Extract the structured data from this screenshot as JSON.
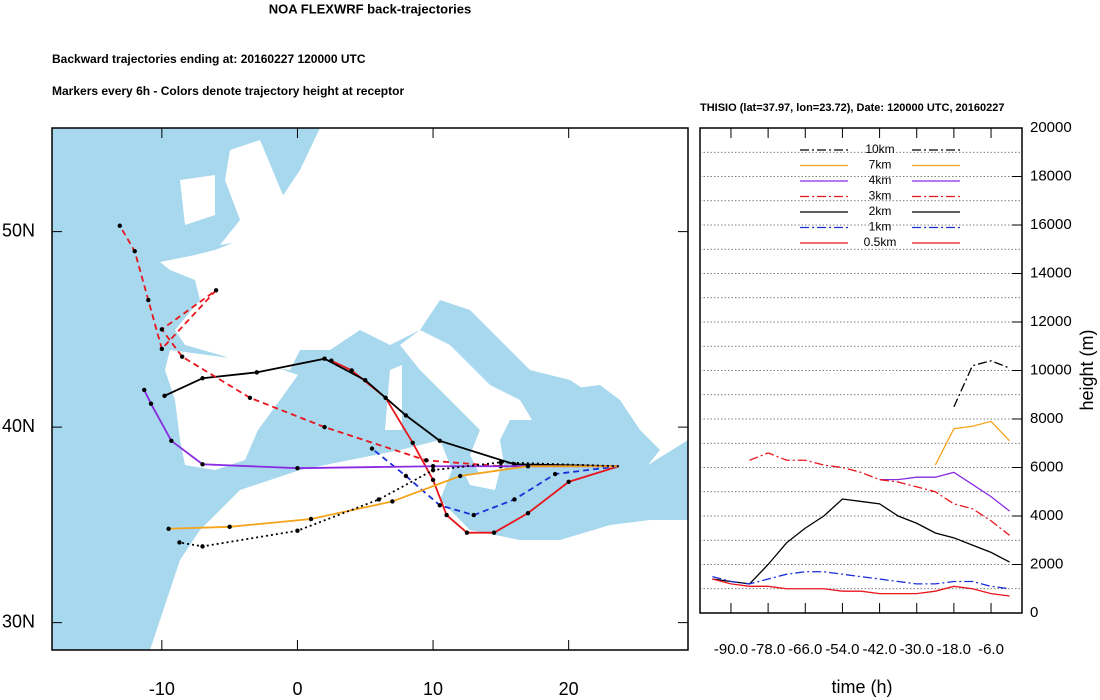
{
  "chart_data": [
    {
      "type": "map",
      "title": "NOA FLEXWRF back-trajectories",
      "subtitles": [
        "Backward trajectories ending at: 20160227  120000 UTC",
        "Markers every 6h - Colors denote trajectory height at receptor"
      ],
      "xlim": [
        -18.1,
        28.8
      ],
      "ylim": [
        28.6,
        55.3
      ],
      "xticks": [
        -10,
        0,
        10,
        20
      ],
      "yticks": [
        {
          "value": 30,
          "label": "30N"
        },
        {
          "value": 40,
          "label": "40N"
        },
        {
          "value": 50,
          "label": "50N"
        }
      ],
      "series": [
        {
          "color": "#e8151b",
          "dash": "solid",
          "x": [
            23.7,
            20,
            17,
            14.5,
            12.5,
            11,
            10,
            8.5,
            6.5,
            4,
            2.5
          ],
          "values": [
            38,
            37.2,
            35.6,
            34.6,
            34.6,
            35.5,
            37.3,
            39.2,
            41.5,
            42.9,
            43.4
          ]
        },
        {
          "color": "#1a2fd8",
          "dash": "dash",
          "x": [
            23.7,
            19,
            16,
            13,
            10.5,
            8,
            5.5
          ],
          "values": [
            38,
            37.6,
            36.3,
            35.5,
            36,
            37.5,
            38.9
          ]
        },
        {
          "color": "#000000",
          "dash": "solid",
          "x": [
            23.7,
            16,
            10.5,
            8,
            5,
            2,
            -3,
            -7,
            -9.8
          ],
          "values": [
            38,
            38.1,
            39.3,
            40.6,
            42.4,
            43.5,
            42.8,
            42.5,
            41.6
          ]
        },
        {
          "color": "#e8151b",
          "dash": "dash",
          "x": [
            23.7,
            15,
            9.5,
            2,
            -3.5,
            -8.5,
            -10,
            -6,
            -10,
            -11,
            -12,
            -13.1
          ],
          "values": [
            38,
            38,
            38.3,
            40,
            41.5,
            43.6,
            45,
            47,
            44,
            46.5,
            49,
            50.3
          ]
        },
        {
          "color": "#8a2be2",
          "dash": "solid",
          "x": [
            23.7,
            10,
            0,
            -7,
            -9.3,
            -10.8,
            -11.3
          ],
          "values": [
            38,
            38,
            37.9,
            38.1,
            39.3,
            41.2,
            41.9
          ]
        },
        {
          "color": "#f5a31a",
          "dash": "solid",
          "x": [
            23.7,
            17,
            12,
            7,
            1,
            -5,
            -9.5
          ],
          "values": [
            38,
            38,
            37.5,
            36.2,
            35.3,
            34.9,
            34.8
          ]
        },
        {
          "color": "#000000",
          "dash": "dot",
          "x": [
            23.7,
            15,
            10,
            6,
            0,
            -7,
            -8.7
          ],
          "values": [
            38,
            38.2,
            37.8,
            36.3,
            34.7,
            33.9,
            34.1
          ]
        }
      ]
    },
    {
      "type": "line",
      "title": "THISIO (lat=37.97,  lon=23.72), Date: 120000 UTC, 20160227",
      "x_label": "time (h)",
      "y_label": "height (m)",
      "xlim": [
        -100,
        4
      ],
      "ylim": [
        0,
        20000
      ],
      "xticks": [
        {
          "value": -90,
          "label": "-90.0"
        },
        {
          "value": -78,
          "label": "-78.0"
        },
        {
          "value": -66,
          "label": "-66.0"
        },
        {
          "value": -54,
          "label": "-54.0"
        },
        {
          "value": -42,
          "label": "-42.0"
        },
        {
          "value": -30,
          "label": "-30.0"
        },
        {
          "value": -18,
          "label": "-18.0"
        },
        {
          "value": -6,
          "label": "-6.0"
        }
      ],
      "yticks": [
        0,
        2000,
        4000,
        6000,
        8000,
        10000,
        12000,
        14000,
        16000,
        18000,
        20000
      ],
      "grid_lines": [
        1000,
        2000,
        3000,
        4000,
        5000,
        6000,
        7000,
        8000,
        9000,
        10000,
        11000,
        12000,
        13000,
        14000,
        15000,
        16000,
        17000,
        18000,
        19000
      ],
      "x": [
        -96,
        -90,
        -84,
        -78,
        -72,
        -66,
        -60,
        -54,
        -48,
        -42,
        -36,
        -30,
        -24,
        -18,
        -12,
        -6,
        0
      ],
      "series": [
        {
          "name": "10km",
          "color": "#000000",
          "dash": "dashdot",
          "values": [
            null,
            null,
            null,
            null,
            null,
            null,
            null,
            null,
            null,
            null,
            null,
            null,
            null,
            8500,
            10200,
            10400,
            10100
          ]
        },
        {
          "name": "7km",
          "color": "#f5a31a",
          "dash": "solid",
          "values": [
            null,
            null,
            null,
            null,
            null,
            null,
            null,
            null,
            null,
            null,
            null,
            null,
            6100,
            7600,
            7700,
            7900,
            7100
          ]
        },
        {
          "name": "4km",
          "color": "#8a2be2",
          "dash": "solid",
          "values": [
            null,
            null,
            null,
            null,
            null,
            null,
            null,
            null,
            null,
            5500,
            5500,
            5600,
            5600,
            5800,
            5300,
            4800,
            4200
          ]
        },
        {
          "name": "3km",
          "color": "#e8151b",
          "dash": "dashdot",
          "values": [
            null,
            null,
            6300,
            6600,
            6300,
            6300,
            6100,
            6000,
            5800,
            5500,
            5400,
            5200,
            5000,
            4500,
            4300,
            3800,
            3200
          ]
        },
        {
          "name": "2km",
          "color": "#000000",
          "dash": "solid",
          "values": [
            1400,
            1300,
            1200,
            2000,
            2900,
            3500,
            4000,
            4700,
            4600,
            4500,
            4000,
            3700,
            3300,
            3100,
            2800,
            2500,
            2100
          ]
        },
        {
          "name": "1km",
          "color": "#1a2fd8",
          "dash": "dashdot",
          "values": [
            1500,
            1300,
            1200,
            1400,
            1600,
            1700,
            1700,
            1600,
            1500,
            1400,
            1300,
            1200,
            1200,
            1300,
            1300,
            1100,
            1000
          ]
        },
        {
          "name": "0.5km",
          "color": "#e8151b",
          "dash": "solid",
          "values": [
            1400,
            1200,
            1100,
            1100,
            1000,
            1000,
            1000,
            900,
            900,
            800,
            800,
            800,
            900,
            1100,
            1000,
            800,
            700
          ]
        }
      ]
    }
  ]
}
